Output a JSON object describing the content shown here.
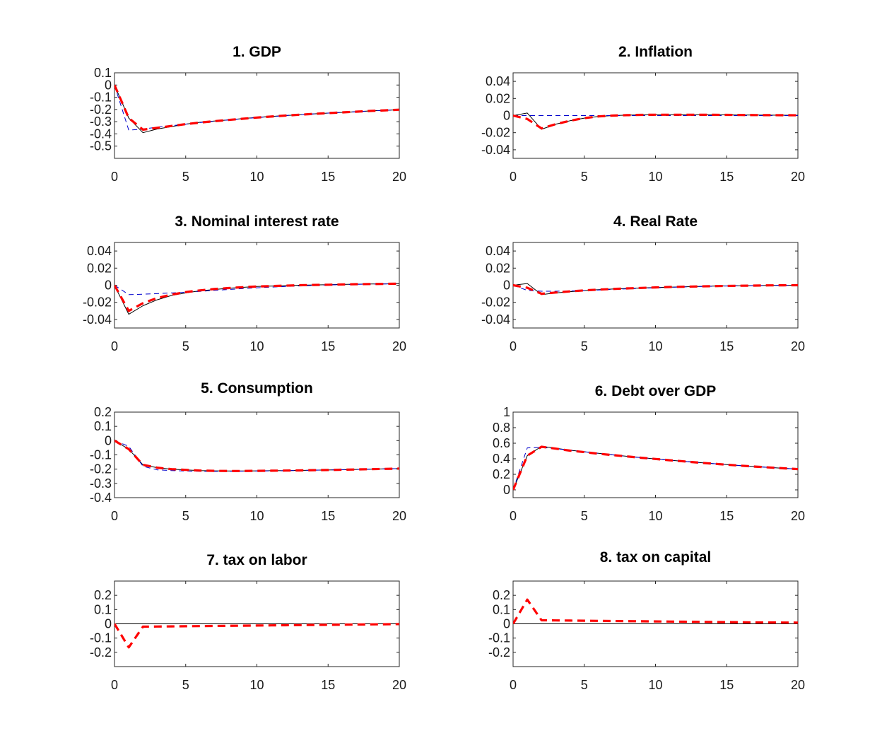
{
  "chart_data": [
    {
      "type": "line",
      "title": "1. GDP",
      "xlim": [
        0,
        20
      ],
      "ylim": [
        -0.6,
        0.1
      ],
      "xticks": [
        "0",
        "5",
        "10",
        "15",
        "20"
      ],
      "yticks": [
        "0.1",
        "0",
        "-0.1",
        "-0.2",
        "-0.3",
        "-0.4",
        "-0.5"
      ],
      "x": [
        0,
        1,
        2,
        3,
        4,
        5,
        6,
        7,
        8,
        9,
        10,
        11,
        12,
        13,
        14,
        15,
        16,
        17,
        18,
        19,
        20
      ],
      "series": [
        {
          "style": "solid-thin",
          "color": "#000000",
          "values": [
            0,
            -0.27,
            -0.39,
            -0.36,
            -0.34,
            -0.32,
            -0.305,
            -0.295,
            -0.285,
            -0.275,
            -0.265,
            -0.257,
            -0.25,
            -0.243,
            -0.236,
            -0.23,
            -0.224,
            -0.218,
            -0.212,
            -0.207,
            -0.202
          ]
        },
        {
          "style": "dashed-thin",
          "color": "#0000cc",
          "values": [
            0,
            -0.37,
            -0.36,
            -0.345,
            -0.333,
            -0.32,
            -0.307,
            -0.296,
            -0.286,
            -0.276,
            -0.266,
            -0.258,
            -0.25,
            -0.243,
            -0.236,
            -0.23,
            -0.224,
            -0.218,
            -0.212,
            -0.207,
            -0.202
          ]
        },
        {
          "style": "dashed-thick",
          "color": "#ff0000",
          "values": [
            0,
            -0.27,
            -0.365,
            -0.35,
            -0.335,
            -0.32,
            -0.307,
            -0.296,
            -0.286,
            -0.276,
            -0.266,
            -0.258,
            -0.25,
            -0.243,
            -0.236,
            -0.23,
            -0.224,
            -0.218,
            -0.212,
            -0.207,
            -0.202
          ]
        }
      ]
    },
    {
      "type": "line",
      "title": "2. Inflation",
      "xlim": [
        0,
        20
      ],
      "ylim": [
        -0.05,
        0.05
      ],
      "xticks": [
        "0",
        "5",
        "10",
        "15",
        "20"
      ],
      "yticks": [
        "0.04",
        "0.02",
        "0",
        "-0.02",
        "-0.04"
      ],
      "x": [
        0,
        1,
        2,
        3,
        4,
        5,
        6,
        7,
        8,
        9,
        10,
        11,
        12,
        13,
        14,
        15,
        16,
        17,
        18,
        19,
        20
      ],
      "series": [
        {
          "style": "solid-thin",
          "color": "#000000",
          "values": [
            0,
            0.003,
            -0.016,
            -0.01,
            -0.006,
            -0.003,
            -0.001,
            0,
            0.0005,
            0.0008,
            0.001,
            0.001,
            0.001,
            0.001,
            0.0009,
            0.0008,
            0.0007,
            0.0006,
            0.0005,
            0.0004,
            0.0003
          ]
        },
        {
          "style": "dashed-thin",
          "color": "#0000cc",
          "values": [
            0,
            0,
            0,
            0,
            0,
            0,
            0,
            0,
            0,
            0,
            0,
            0,
            0,
            0,
            0,
            0,
            0,
            0,
            0,
            0,
            0
          ]
        },
        {
          "style": "dashed-thick",
          "color": "#ff0000",
          "values": [
            0,
            -0.004,
            -0.015,
            -0.01,
            -0.006,
            -0.003,
            -0.001,
            0,
            0.0005,
            0.0008,
            0.001,
            0.001,
            0.001,
            0.001,
            0.0009,
            0.0008,
            0.0007,
            0.0006,
            0.0005,
            0.0004,
            0.0003
          ]
        }
      ]
    },
    {
      "type": "line",
      "title": "3. Nominal interest rate",
      "xlim": [
        0,
        20
      ],
      "ylim": [
        -0.05,
        0.05
      ],
      "xticks": [
        "0",
        "5",
        "10",
        "15",
        "20"
      ],
      "yticks": [
        "0.04",
        "0.02",
        "0",
        "-0.02",
        "-0.04"
      ],
      "x": [
        0,
        1,
        2,
        3,
        4,
        5,
        6,
        7,
        8,
        9,
        10,
        11,
        12,
        13,
        14,
        15,
        16,
        17,
        18,
        19,
        20
      ],
      "series": [
        {
          "style": "solid-thin",
          "color": "#000000",
          "values": [
            0,
            -0.034,
            -0.024,
            -0.017,
            -0.012,
            -0.009,
            -0.0065,
            -0.005,
            -0.0035,
            -0.0025,
            -0.0015,
            -0.001,
            -0.0005,
            0,
            0.0003,
            0.0006,
            0.0009,
            0.0012,
            0.0014,
            0.0016,
            0.0018
          ]
        },
        {
          "style": "dashed-thin",
          "color": "#0000cc",
          "values": [
            0,
            -0.011,
            -0.0105,
            -0.0098,
            -0.009,
            -0.0082,
            -0.0072,
            -0.006,
            -0.005,
            -0.004,
            -0.003,
            -0.0022,
            -0.0015,
            -0.0008,
            -0.0002,
            0.0003,
            0.0007,
            0.001,
            0.0013,
            0.0015,
            0.0017
          ]
        },
        {
          "style": "dashed-thick",
          "color": "#ff0000",
          "values": [
            0,
            -0.03,
            -0.021,
            -0.015,
            -0.011,
            -0.008,
            -0.006,
            -0.0045,
            -0.0033,
            -0.0023,
            -0.0015,
            -0.001,
            -0.0005,
            0,
            0.0003,
            0.0006,
            0.0009,
            0.0012,
            0.0014,
            0.0016,
            0.0018
          ]
        }
      ]
    },
    {
      "type": "line",
      "title": "4. Real Rate",
      "xlim": [
        0,
        20
      ],
      "ylim": [
        -0.05,
        0.05
      ],
      "xticks": [
        "0",
        "5",
        "10",
        "15",
        "20"
      ],
      "yticks": [
        "0.04",
        "0.02",
        "0",
        "-0.02",
        "-0.04"
      ],
      "x": [
        0,
        1,
        2,
        3,
        4,
        5,
        6,
        7,
        8,
        9,
        10,
        11,
        12,
        13,
        14,
        15,
        16,
        17,
        18,
        19,
        20
      ],
      "series": [
        {
          "style": "solid-thin",
          "color": "#000000",
          "values": [
            0,
            0.002,
            -0.011,
            -0.009,
            -0.0075,
            -0.0062,
            -0.0052,
            -0.0045,
            -0.0038,
            -0.0032,
            -0.0027,
            -0.0022,
            -0.0018,
            -0.0014,
            -0.0011,
            -0.0008,
            -0.0006,
            -0.0004,
            -0.0002,
            -0.0001,
            0
          ]
        },
        {
          "style": "dashed-thin",
          "color": "#0000cc",
          "values": [
            0,
            -0.006,
            -0.007,
            -0.007,
            -0.0068,
            -0.0063,
            -0.0056,
            -0.0049,
            -0.0042,
            -0.0036,
            -0.003,
            -0.0025,
            -0.002,
            -0.0016,
            -0.0012,
            -0.0009,
            -0.0006,
            -0.0004,
            -0.0002,
            -0.0001,
            0
          ]
        },
        {
          "style": "dashed-thick",
          "color": "#ff0000",
          "values": [
            0,
            -0.003,
            -0.01,
            -0.0085,
            -0.0072,
            -0.006,
            -0.0051,
            -0.0044,
            -0.0037,
            -0.0031,
            -0.0026,
            -0.0021,
            -0.0017,
            -0.0014,
            -0.0011,
            -0.0008,
            -0.0006,
            -0.0004,
            -0.0002,
            -0.0001,
            0
          ]
        }
      ]
    },
    {
      "type": "line",
      "title": "5. Consumption",
      "xlim": [
        0,
        20
      ],
      "ylim": [
        -0.4,
        0.2
      ],
      "xticks": [
        "0",
        "5",
        "10",
        "15",
        "20"
      ],
      "yticks": [
        "0.2",
        "0.1",
        "0",
        "-0.1",
        "-0.2",
        "-0.3",
        "-0.4"
      ],
      "x": [
        0,
        1,
        2,
        3,
        4,
        5,
        6,
        7,
        8,
        9,
        10,
        11,
        12,
        13,
        14,
        15,
        16,
        17,
        18,
        19,
        20
      ],
      "series": [
        {
          "style": "solid-thin",
          "color": "#000000",
          "values": [
            0,
            -0.06,
            -0.17,
            -0.19,
            -0.2,
            -0.205,
            -0.21,
            -0.212,
            -0.213,
            -0.213,
            -0.212,
            -0.211,
            -0.21,
            -0.209,
            -0.207,
            -0.206,
            -0.204,
            -0.202,
            -0.2,
            -0.198,
            -0.196
          ]
        },
        {
          "style": "dashed-thin",
          "color": "#0000cc",
          "values": [
            0,
            -0.04,
            -0.18,
            -0.205,
            -0.21,
            -0.213,
            -0.215,
            -0.215,
            -0.215,
            -0.214,
            -0.213,
            -0.212,
            -0.211,
            -0.209,
            -0.207,
            -0.206,
            -0.204,
            -0.202,
            -0.2,
            -0.198,
            -0.196
          ]
        },
        {
          "style": "dashed-thick",
          "color": "#ff0000",
          "values": [
            0,
            -0.06,
            -0.17,
            -0.19,
            -0.2,
            -0.205,
            -0.21,
            -0.212,
            -0.213,
            -0.213,
            -0.212,
            -0.211,
            -0.21,
            -0.209,
            -0.207,
            -0.206,
            -0.204,
            -0.202,
            -0.2,
            -0.198,
            -0.196
          ]
        }
      ]
    },
    {
      "type": "line",
      "title": "6. Debt over GDP",
      "xlim": [
        0,
        20
      ],
      "ylim": [
        -0.1,
        1.0
      ],
      "xticks": [
        "0",
        "5",
        "10",
        "15",
        "20"
      ],
      "yticks": [
        "1",
        "0.8",
        "0.6",
        "0.4",
        "0.2",
        "0"
      ],
      "x": [
        0,
        1,
        2,
        3,
        4,
        5,
        6,
        7,
        8,
        9,
        10,
        11,
        12,
        13,
        14,
        15,
        16,
        17,
        18,
        19,
        20
      ],
      "series": [
        {
          "style": "solid-thin",
          "color": "#000000",
          "values": [
            0,
            0.44,
            0.56,
            0.535,
            0.51,
            0.49,
            0.47,
            0.45,
            0.432,
            0.415,
            0.398,
            0.382,
            0.367,
            0.352,
            0.338,
            0.325,
            0.312,
            0.3,
            0.288,
            0.277,
            0.267
          ]
        },
        {
          "style": "dashed-thin",
          "color": "#0000cc",
          "values": [
            0,
            0.54,
            0.545,
            0.53,
            0.51,
            0.49,
            0.47,
            0.45,
            0.432,
            0.415,
            0.398,
            0.382,
            0.367,
            0.352,
            0.338,
            0.325,
            0.312,
            0.3,
            0.288,
            0.277,
            0.267
          ]
        },
        {
          "style": "dashed-thick",
          "color": "#ff0000",
          "values": [
            0,
            0.44,
            0.555,
            0.53,
            0.505,
            0.485,
            0.465,
            0.447,
            0.43,
            0.413,
            0.397,
            0.381,
            0.366,
            0.351,
            0.337,
            0.324,
            0.311,
            0.299,
            0.288,
            0.277,
            0.267
          ]
        }
      ]
    },
    {
      "type": "line",
      "title": "7. tax on labor",
      "xlim": [
        0,
        20
      ],
      "ylim": [
        -0.3,
        0.3
      ],
      "xticks": [
        "0",
        "5",
        "10",
        "15",
        "20"
      ],
      "yticks": [
        "0.2",
        "0.1",
        "0",
        "-0.1",
        "-0.2"
      ],
      "x": [
        0,
        1,
        2,
        3,
        4,
        5,
        6,
        7,
        8,
        9,
        10,
        11,
        12,
        13,
        14,
        15,
        16,
        17,
        18,
        19,
        20
      ],
      "series": [
        {
          "style": "solid-thin",
          "color": "#000000",
          "values": [
            0,
            0,
            0,
            0,
            0,
            0,
            0,
            0,
            0,
            0,
            0,
            0,
            0,
            0,
            0,
            0,
            0,
            0,
            0,
            0,
            0
          ]
        },
        {
          "style": "dashed-thick",
          "color": "#ff0000",
          "values": [
            0,
            -0.165,
            -0.02,
            -0.019,
            -0.018,
            -0.017,
            -0.016,
            -0.015,
            -0.014,
            -0.013,
            -0.012,
            -0.011,
            -0.01,
            -0.009,
            -0.008,
            -0.007,
            -0.006,
            -0.005,
            -0.004,
            -0.003,
            -0.002
          ]
        }
      ]
    },
    {
      "type": "line",
      "title": "8. tax on capital",
      "xlim": [
        0,
        20
      ],
      "ylim": [
        -0.3,
        0.3
      ],
      "xticks": [
        "0",
        "5",
        "10",
        "15",
        "20"
      ],
      "yticks": [
        "0.2",
        "0.1",
        "0",
        "-0.1",
        "-0.2"
      ],
      "x": [
        0,
        1,
        2,
        3,
        4,
        5,
        6,
        7,
        8,
        9,
        10,
        11,
        12,
        13,
        14,
        15,
        16,
        17,
        18,
        19,
        20
      ],
      "series": [
        {
          "style": "solid-thin",
          "color": "#000000",
          "values": [
            0,
            0,
            0,
            0,
            0,
            0,
            0,
            0,
            0,
            0,
            0,
            0,
            0,
            0,
            0,
            0,
            0,
            0,
            0,
            0,
            0
          ]
        },
        {
          "style": "dashed-thick",
          "color": "#ff0000",
          "values": [
            0,
            0.17,
            0.025,
            0.024,
            0.023,
            0.022,
            0.021,
            0.02,
            0.019,
            0.018,
            0.017,
            0.016,
            0.015,
            0.014,
            0.013,
            0.012,
            0.011,
            0.01,
            0.0095,
            0.009,
            0.0085
          ]
        }
      ]
    }
  ]
}
